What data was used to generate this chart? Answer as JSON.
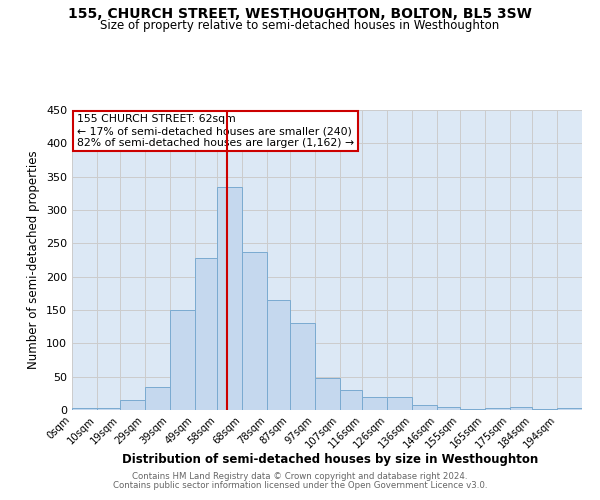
{
  "title": "155, CHURCH STREET, WESTHOUGHTON, BOLTON, BL5 3SW",
  "subtitle": "Size of property relative to semi-detached houses in Westhoughton",
  "xlabel": "Distribution of semi-detached houses by size in Westhoughton",
  "ylabel": "Number of semi-detached properties",
  "footer1": "Contains HM Land Registry data © Crown copyright and database right 2024.",
  "footer2": "Contains public sector information licensed under the Open Government Licence v3.0.",
  "bar_labels": [
    "0sqm",
    "10sqm",
    "19sqm",
    "29sqm",
    "39sqm",
    "49sqm",
    "58sqm",
    "68sqm",
    "78sqm",
    "87sqm",
    "97sqm",
    "107sqm",
    "116sqm",
    "126sqm",
    "136sqm",
    "146sqm",
    "155sqm",
    "165sqm",
    "175sqm",
    "184sqm",
    "194sqm"
  ],
  "bar_values": [
    3,
    3,
    15,
    35,
    150,
    228,
    335,
    237,
    165,
    131,
    48,
    30,
    20,
    19,
    8,
    4,
    2,
    3,
    4,
    2,
    3
  ],
  "bar_color": "#c5d8ee",
  "bar_edge_color": "#7aaad0",
  "property_line_x": 62,
  "annotation_title": "155 CHURCH STREET: 62sqm",
  "annotation_line1": "← 17% of semi-detached houses are smaller (240)",
  "annotation_line2": "82% of semi-detached houses are larger (1,162) →",
  "annotation_box_color": "#ffffff",
  "annotation_box_edge": "#cc0000",
  "vline_color": "#cc0000",
  "ylim": [
    0,
    450
  ],
  "yticks": [
    0,
    50,
    100,
    150,
    200,
    250,
    300,
    350,
    400,
    450
  ],
  "grid_color": "#cccccc",
  "bg_color": "#dce8f5",
  "fig_bg_color": "#ffffff",
  "bin_edges": [
    0,
    10,
    19,
    29,
    39,
    49,
    58,
    68,
    78,
    87,
    97,
    107,
    116,
    126,
    136,
    146,
    155,
    165,
    175,
    184,
    194,
    204
  ]
}
